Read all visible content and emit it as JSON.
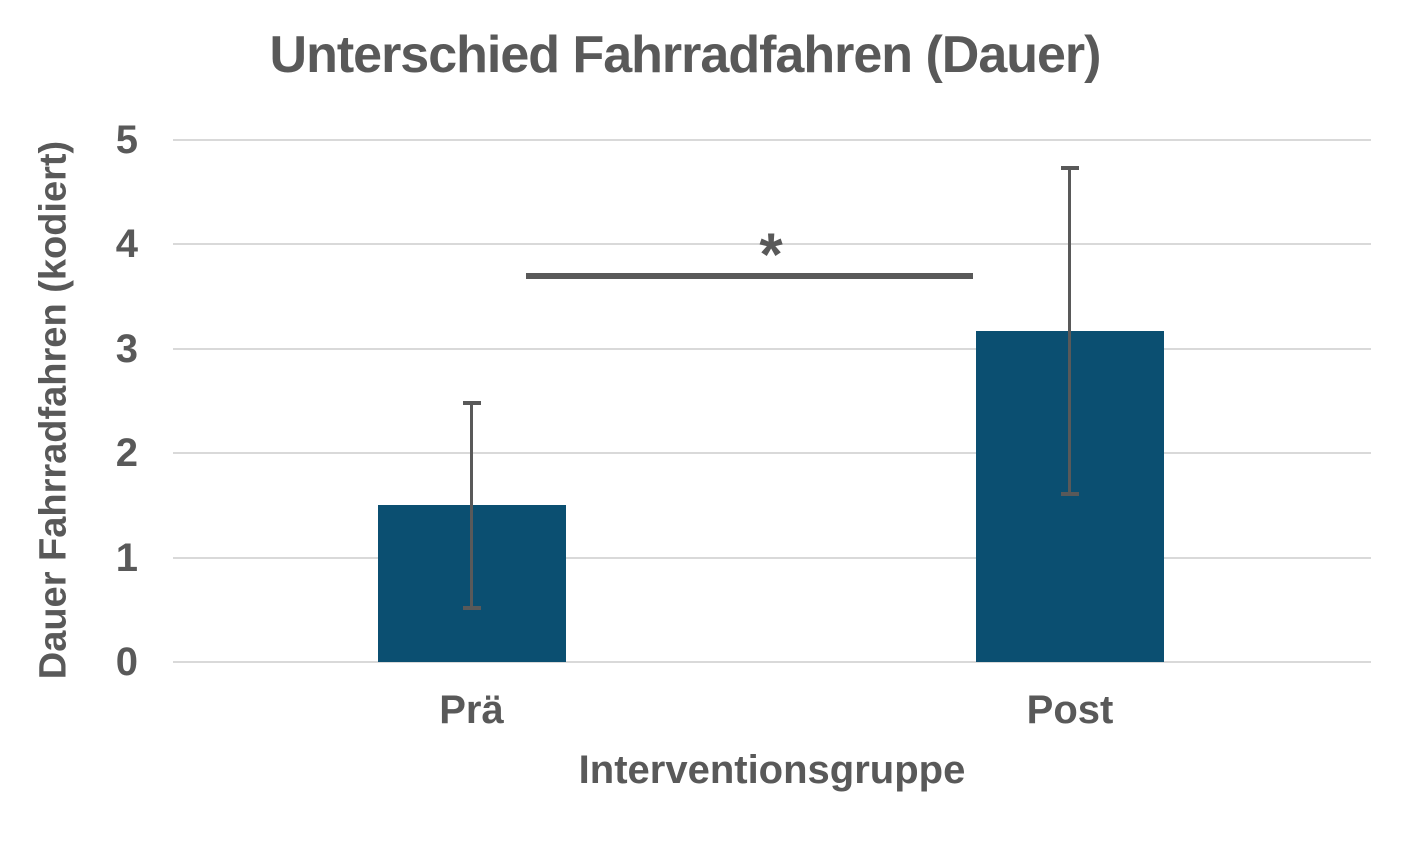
{
  "chart_data": {
    "type": "bar",
    "title": "Unterschied Fahrradfahren (Dauer)",
    "xlabel": "Interventionsgruppe",
    "ylabel": "Dauer Fahrradfahren (kodiert)",
    "categories": [
      "Prä",
      "Post"
    ],
    "values": [
      1.5,
      3.17
    ],
    "error_bars": [
      {
        "low": 0.5,
        "high": 2.5
      },
      {
        "low": 1.59,
        "high": 4.75
      }
    ],
    "ylim": [
      0,
      5
    ],
    "yticks": [
      0,
      1,
      2,
      3,
      4,
      5
    ],
    "grid": "horizontal",
    "legend": "none",
    "significance": {
      "label": "*",
      "between": [
        "Prä",
        "Post"
      ],
      "line_y": 3.73
    },
    "colors": {
      "bar": "#0B4F71",
      "error": "#595959",
      "grid": "#D9D9D9",
      "text": "#595959",
      "background": "#FFFFFF"
    }
  }
}
